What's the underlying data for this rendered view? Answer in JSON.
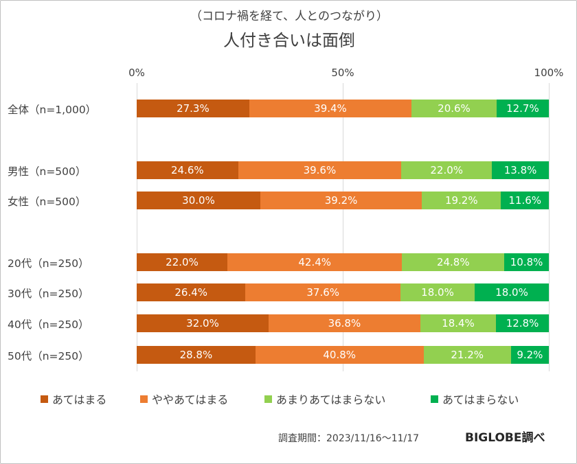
{
  "chart_data": {
    "type": "bar",
    "orientation": "horizontal-stacked-100",
    "subtitle": "（コロナ禍を経て、人とのつながり）",
    "title": "人付き合いは面倒",
    "x_ticks": [
      "0%",
      "50%",
      "100%"
    ],
    "xlim": [
      0,
      100
    ],
    "grid": true,
    "legend_position": "bottom",
    "categories": [
      "全体（n=1,000）",
      "男性（n=500）",
      "女性（n=500）",
      "20代（n=250）",
      "30代（n=250）",
      "40代（n=250）",
      "50代（n=250）"
    ],
    "series": [
      {
        "name": "あてはまる",
        "color": "#c55a11",
        "values": [
          27.3,
          24.6,
          30.0,
          22.0,
          26.4,
          32.0,
          28.8
        ],
        "labels": [
          "27.3%",
          "24.6%",
          "30.0%",
          "22.0%",
          "26.4%",
          "32.0%",
          "28.8%"
        ]
      },
      {
        "name": "ややあてはまる",
        "color": "#ed7d31",
        "values": [
          39.4,
          39.6,
          39.2,
          42.4,
          37.6,
          36.8,
          40.8
        ],
        "labels": [
          "39.4%",
          "39.6%",
          "39.2%",
          "42.4%",
          "37.6%",
          "36.8%",
          "40.8%"
        ]
      },
      {
        "name": "あまりあてはまらない",
        "color": "#92d050",
        "values": [
          20.6,
          22.0,
          19.2,
          24.8,
          18.0,
          18.4,
          21.2
        ],
        "labels": [
          "20.6%",
          "22.0%",
          "19.2%",
          "24.8%",
          "18.0%",
          "18.4%",
          "21.2%"
        ]
      },
      {
        "name": "あてはまらない",
        "color": "#00b050",
        "values": [
          12.7,
          13.8,
          11.6,
          10.8,
          18.0,
          12.8,
          9.2
        ],
        "labels": [
          "12.7%",
          "13.8%",
          "11.6%",
          "10.8%",
          "18.0%",
          "12.8%",
          "9.2%"
        ]
      }
    ]
  },
  "footer": {
    "survey_period": "調査期間：2023/11/16～11/17",
    "brand": "BIGLOBE調べ"
  }
}
